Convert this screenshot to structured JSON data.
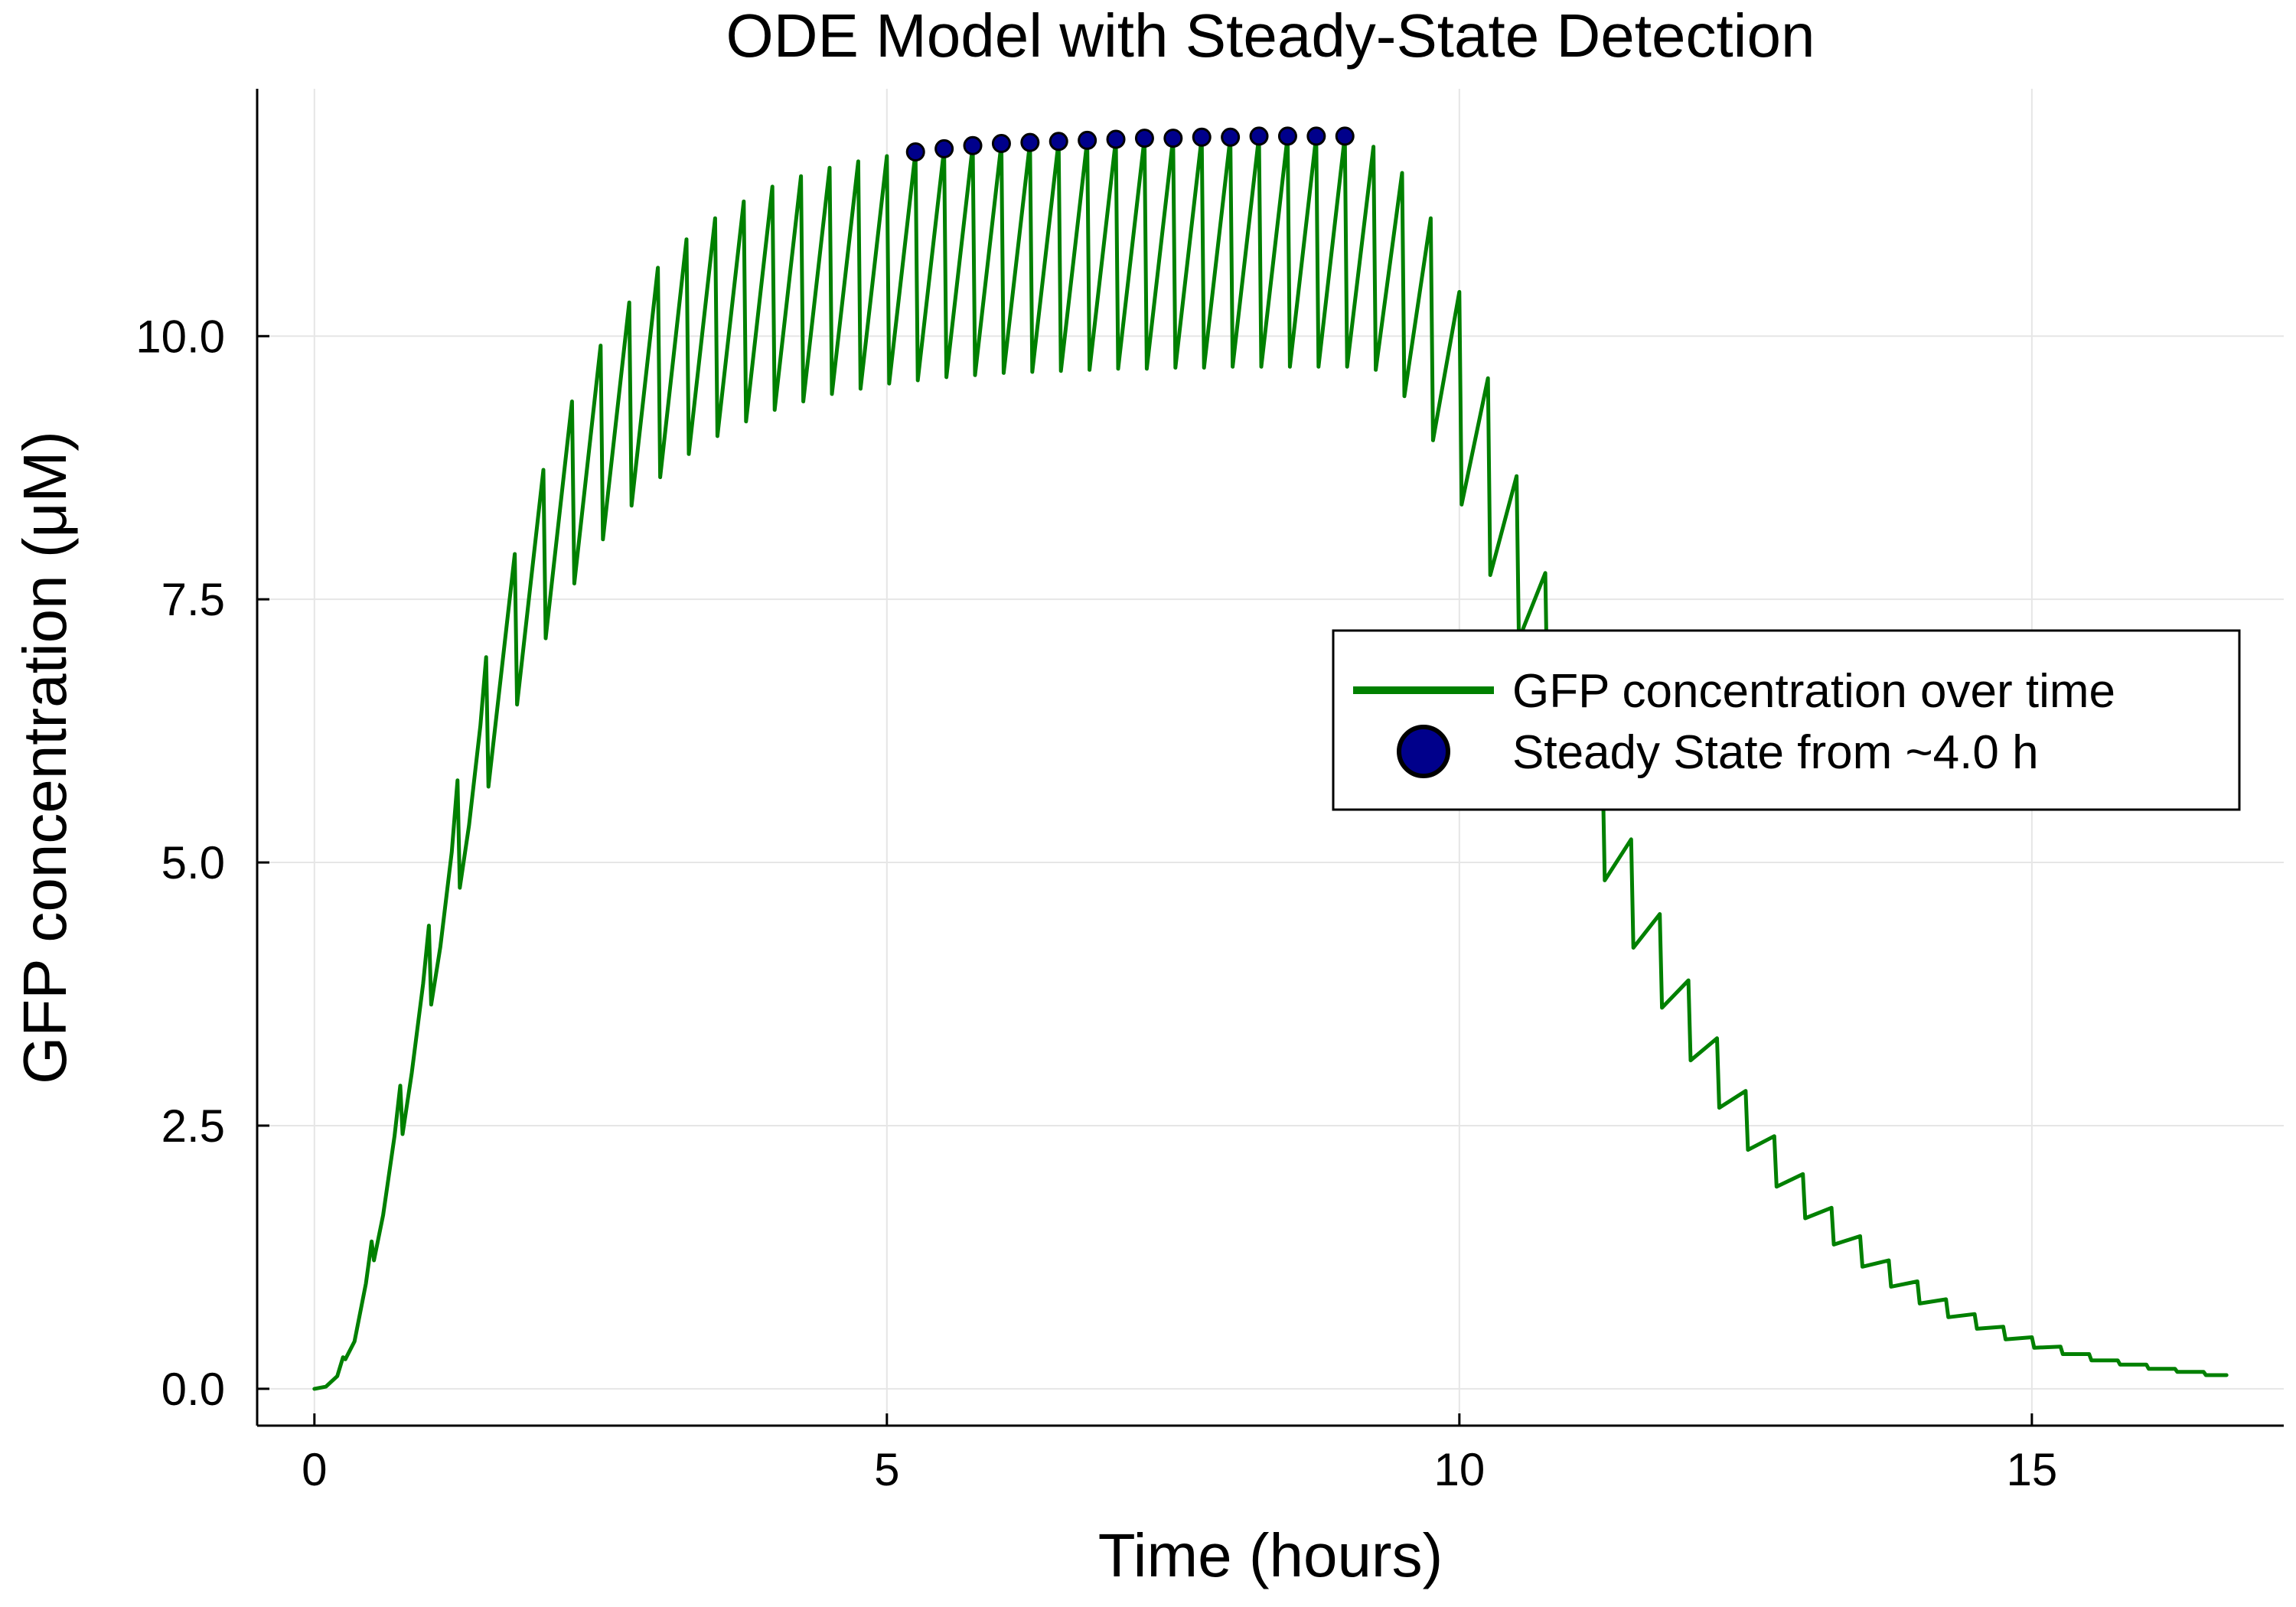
{
  "chart_data": {
    "type": "line",
    "title": "ODE Model with Steady-State Detection",
    "xlabel": "Time (hours)",
    "ylabel": "GFP concentration (μM)",
    "xlim": [
      -0.5,
      17.2
    ],
    "ylim": [
      -0.35,
      12.35
    ],
    "xticks": [
      0,
      5,
      10,
      15
    ],
    "xtick_labels": [
      "0",
      "5",
      "10",
      "15"
    ],
    "yticks": [
      0,
      2.5,
      5,
      7.5,
      10
    ],
    "ytick_labels": [
      "0.0",
      "2.5",
      "5.0",
      "7.5",
      "10.0"
    ],
    "grid": true,
    "legend_position": "right",
    "colors": {
      "line": "#008000",
      "marker_fill": "#00008b",
      "marker_edge": "#000000"
    },
    "series": [
      {
        "name": "GFP concentration over time",
        "type": "line",
        "x": [
          0,
          0.1,
          0.2,
          0.25,
          0.27,
          0.35,
          0.45,
          0.5,
          0.52,
          0.6,
          0.7,
          0.75,
          0.77,
          0.85,
          0.95,
          1.0,
          1.02,
          1.1,
          1.2,
          1.25,
          1.27,
          1.35,
          1.45,
          1.5,
          1.52,
          1.75,
          1.77,
          2.0,
          2.02,
          2.25,
          2.27,
          2.5,
          2.52,
          2.75,
          2.77,
          3.0,
          3.02,
          3.25,
          3.27,
          3.5,
          3.52,
          3.75,
          3.77,
          4.0,
          4.02,
          4.25,
          4.27,
          4.5,
          4.52,
          4.75,
          4.77,
          5.0,
          5.02,
          5.25,
          5.27,
          5.5,
          5.52,
          5.75,
          5.77,
          6.0,
          6.02,
          6.25,
          6.27,
          6.5,
          6.52,
          6.75,
          6.77,
          7.0,
          7.02,
          7.25,
          7.27,
          7.5,
          7.52,
          7.75,
          7.77,
          8.0,
          8.02,
          8.25,
          8.27,
          8.5,
          8.52,
          8.75,
          8.77,
          9.0,
          9.02,
          9.25,
          9.27,
          9.5,
          9.52,
          9.75,
          9.77,
          10.0,
          10.02,
          10.25,
          10.27,
          10.5,
          10.52,
          10.75,
          10.77,
          11.0,
          11.02,
          11.25,
          11.27,
          11.5,
          11.52,
          11.75,
          11.77,
          12.0,
          12.02,
          12.25,
          12.27,
          12.5,
          12.52,
          12.75,
          12.77,
          13.0,
          13.02,
          13.25,
          13.27,
          13.5,
          13.52,
          13.75,
          13.77,
          14.0,
          14.02,
          14.25,
          14.27,
          14.5,
          14.52,
          14.75,
          14.77,
          15.0,
          15.02,
          15.25,
          15.27,
          15.5,
          15.52,
          15.75,
          15.77,
          16.0,
          16.02,
          16.25,
          16.27,
          16.5,
          16.52,
          16.7
        ],
        "y": [
          0,
          0.02,
          0.12,
          0.3,
          0.28,
          0.45,
          1.0,
          1.4,
          1.22,
          1.65,
          2.4,
          2.88,
          2.42,
          3.0,
          3.85,
          4.4,
          3.65,
          4.2,
          5.1,
          5.78,
          4.76,
          5.35,
          6.3,
          6.95,
          5.72,
          7.93,
          6.5,
          8.73,
          7.13,
          9.38,
          7.65,
          9.91,
          8.07,
          10.32,
          8.39,
          10.65,
          8.66,
          10.92,
          8.88,
          11.12,
          9.05,
          11.28,
          9.19,
          11.42,
          9.3,
          11.52,
          9.38,
          11.6,
          9.45,
          11.66,
          9.5,
          11.71,
          9.55,
          11.75,
          9.58,
          11.78,
          9.61,
          11.81,
          9.63,
          11.83,
          9.65,
          11.84,
          9.66,
          11.85,
          9.67,
          11.86,
          9.68,
          11.87,
          9.69,
          11.88,
          9.69,
          11.88,
          9.7,
          11.89,
          9.7,
          11.89,
          9.71,
          11.9,
          9.71,
          11.9,
          9.71,
          11.9,
          9.71,
          11.9,
          9.71,
          11.8,
          9.68,
          11.55,
          9.43,
          11.12,
          9.01,
          10.42,
          8.4,
          9.6,
          7.73,
          8.67,
          7.12,
          7.75,
          6.5,
          6.8,
          5.6,
          5.95,
          4.83,
          5.22,
          4.19,
          4.51,
          3.62,
          3.88,
          3.12,
          3.33,
          2.67,
          2.83,
          2.27,
          2.4,
          1.92,
          2.04,
          1.62,
          1.72,
          1.37,
          1.45,
          1.16,
          1.22,
          0.97,
          1.02,
          0.81,
          0.85,
          0.68,
          0.71,
          0.57,
          0.59,
          0.47,
          0.49,
          0.39,
          0.4,
          0.33,
          0.33,
          0.27,
          0.27,
          0.23,
          0.23,
          0.19,
          0.19,
          0.16,
          0.16,
          0.13,
          0.13
        ]
      },
      {
        "name": "Steady State from ~4.0 h",
        "type": "scatter",
        "x": [
          5.25,
          5.5,
          5.75,
          6.0,
          6.25,
          6.5,
          6.75,
          7.0,
          7.25,
          7.5,
          7.75,
          8.0,
          8.25,
          8.5,
          8.75,
          9.0
        ],
        "y": [
          11.75,
          11.78,
          11.81,
          11.83,
          11.84,
          11.85,
          11.86,
          11.87,
          11.88,
          11.88,
          11.89,
          11.89,
          11.9,
          11.9,
          11.9,
          11.9
        ]
      }
    ]
  }
}
